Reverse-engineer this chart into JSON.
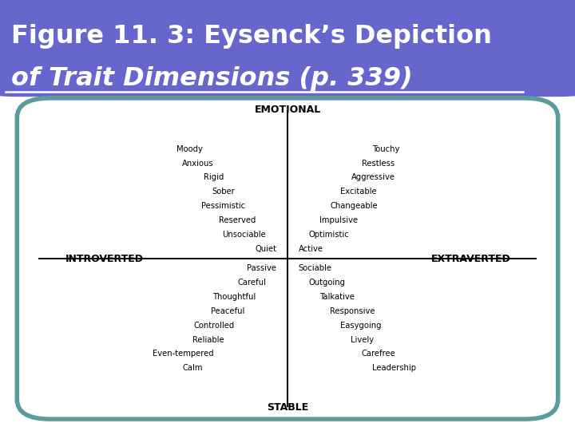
{
  "title_line1": "Figure 11. 3: Eysenck’s Depiction",
  "title_line2": "of Trait Dimensions (p. 339)",
  "title_bg_color": "#6666cc",
  "title_text_color": "#ffffff",
  "border_color": "#5b9b9b",
  "bg_color": "#ffffff",
  "axis_color": "#111111",
  "axis_labels": {
    "top": "EMOTIONAL",
    "bottom": "STABLE",
    "left": "INTROVERTED",
    "right": "EXTRAVERTED"
  },
  "quadrant_NW": [
    "Moody",
    "Anxious",
    "Rigid",
    "Sober",
    "Pessimistic",
    "Reserved",
    "Unsociable",
    "Quiet"
  ],
  "quadrant_NE": [
    "Touchy",
    "Restless",
    "Aggressive",
    "Excitable",
    "Changeable",
    "Impulsive",
    "Optimistic",
    "Active"
  ],
  "quadrant_SW": [
    "Passive",
    "Careful",
    "Thoughtful",
    "Peaceful",
    "Controlled",
    "Reliable",
    "Even-tempered",
    "Calm"
  ],
  "quadrant_SE": [
    "Sociable",
    "Outgoing",
    "Talkative",
    "Responsive",
    "Easygoing",
    "Lively",
    "Carefree",
    "Leadership"
  ]
}
